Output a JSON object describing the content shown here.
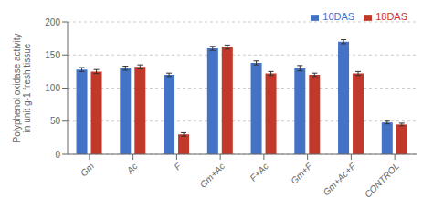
{
  "chart_data": {
    "type": "bar",
    "categories": [
      "Gm",
      "Ac",
      "F",
      "Gm+Ac",
      "F+Ac",
      "Gm+F",
      "Gm+Ac+F",
      "CONTROL"
    ],
    "series": [
      {
        "name": "10DAS",
        "color": "#4472C4",
        "values": [
          128,
          130,
          120,
          160,
          138,
          130,
          170,
          48
        ],
        "errors": [
          3,
          3,
          2.5,
          3,
          3,
          4,
          3,
          2
        ]
      },
      {
        "name": "18DAS",
        "color": "#C0392B",
        "values": [
          125,
          132,
          30,
          162,
          122,
          120,
          122,
          45
        ],
        "errors": [
          3,
          3,
          2.5,
          3,
          3,
          2.5,
          3,
          2
        ]
      }
    ],
    "ylabel": "Polyphenol oxidase activity\nin unit g-1 fresh tissue",
    "ylim": [
      0,
      200
    ],
    "yticks": [
      0,
      50,
      100,
      150,
      200
    ],
    "grid": true,
    "legend": "upper right"
  }
}
